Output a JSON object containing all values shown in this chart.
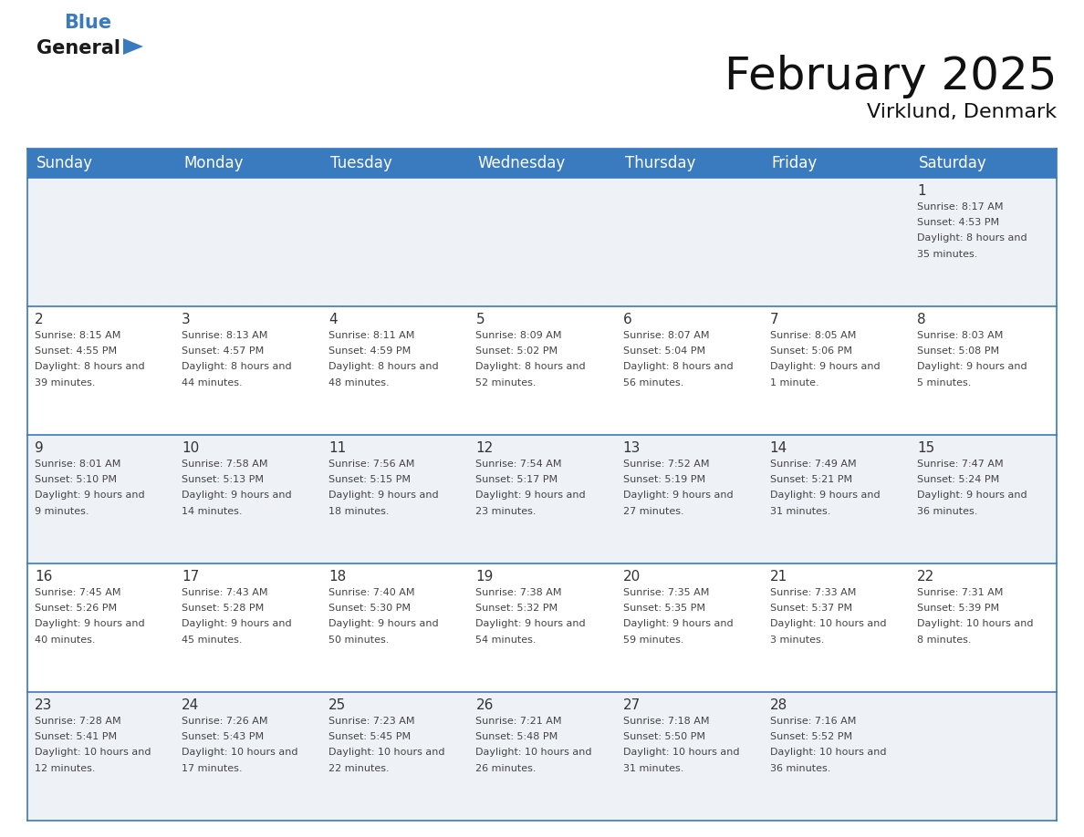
{
  "title": "February 2025",
  "subtitle": "Virklund, Denmark",
  "header_color": "#3a7abf",
  "header_text_color": "#ffffff",
  "day_names": [
    "Sunday",
    "Monday",
    "Tuesday",
    "Wednesday",
    "Thursday",
    "Friday",
    "Saturday"
  ],
  "cell_bg_even": "#eef2f7",
  "cell_bg_odd": "#ffffff",
  "border_color": "#3a7abf",
  "day_num_color": "#333333",
  "text_color": "#444444",
  "title_fontsize": 36,
  "subtitle_fontsize": 16,
  "header_fontsize": 12,
  "day_num_fontsize": 11,
  "info_fontsize": 8.0,
  "days": [
    {
      "date": 1,
      "col": 6,
      "row": 0,
      "sunrise": "8:17 AM",
      "sunset": "4:53 PM",
      "daylight": "8 hours and 35 minutes"
    },
    {
      "date": 2,
      "col": 0,
      "row": 1,
      "sunrise": "8:15 AM",
      "sunset": "4:55 PM",
      "daylight": "8 hours and 39 minutes"
    },
    {
      "date": 3,
      "col": 1,
      "row": 1,
      "sunrise": "8:13 AM",
      "sunset": "4:57 PM",
      "daylight": "8 hours and 44 minutes"
    },
    {
      "date": 4,
      "col": 2,
      "row": 1,
      "sunrise": "8:11 AM",
      "sunset": "4:59 PM",
      "daylight": "8 hours and 48 minutes"
    },
    {
      "date": 5,
      "col": 3,
      "row": 1,
      "sunrise": "8:09 AM",
      "sunset": "5:02 PM",
      "daylight": "8 hours and 52 minutes"
    },
    {
      "date": 6,
      "col": 4,
      "row": 1,
      "sunrise": "8:07 AM",
      "sunset": "5:04 PM",
      "daylight": "8 hours and 56 minutes"
    },
    {
      "date": 7,
      "col": 5,
      "row": 1,
      "sunrise": "8:05 AM",
      "sunset": "5:06 PM",
      "daylight": "9 hours and 1 minute"
    },
    {
      "date": 8,
      "col": 6,
      "row": 1,
      "sunrise": "8:03 AM",
      "sunset": "5:08 PM",
      "daylight": "9 hours and 5 minutes"
    },
    {
      "date": 9,
      "col": 0,
      "row": 2,
      "sunrise": "8:01 AM",
      "sunset": "5:10 PM",
      "daylight": "9 hours and 9 minutes"
    },
    {
      "date": 10,
      "col": 1,
      "row": 2,
      "sunrise": "7:58 AM",
      "sunset": "5:13 PM",
      "daylight": "9 hours and 14 minutes"
    },
    {
      "date": 11,
      "col": 2,
      "row": 2,
      "sunrise": "7:56 AM",
      "sunset": "5:15 PM",
      "daylight": "9 hours and 18 minutes"
    },
    {
      "date": 12,
      "col": 3,
      "row": 2,
      "sunrise": "7:54 AM",
      "sunset": "5:17 PM",
      "daylight": "9 hours and 23 minutes"
    },
    {
      "date": 13,
      "col": 4,
      "row": 2,
      "sunrise": "7:52 AM",
      "sunset": "5:19 PM",
      "daylight": "9 hours and 27 minutes"
    },
    {
      "date": 14,
      "col": 5,
      "row": 2,
      "sunrise": "7:49 AM",
      "sunset": "5:21 PM",
      "daylight": "9 hours and 31 minutes"
    },
    {
      "date": 15,
      "col": 6,
      "row": 2,
      "sunrise": "7:47 AM",
      "sunset": "5:24 PM",
      "daylight": "9 hours and 36 minutes"
    },
    {
      "date": 16,
      "col": 0,
      "row": 3,
      "sunrise": "7:45 AM",
      "sunset": "5:26 PM",
      "daylight": "9 hours and 40 minutes"
    },
    {
      "date": 17,
      "col": 1,
      "row": 3,
      "sunrise": "7:43 AM",
      "sunset": "5:28 PM",
      "daylight": "9 hours and 45 minutes"
    },
    {
      "date": 18,
      "col": 2,
      "row": 3,
      "sunrise": "7:40 AM",
      "sunset": "5:30 PM",
      "daylight": "9 hours and 50 minutes"
    },
    {
      "date": 19,
      "col": 3,
      "row": 3,
      "sunrise": "7:38 AM",
      "sunset": "5:32 PM",
      "daylight": "9 hours and 54 minutes"
    },
    {
      "date": 20,
      "col": 4,
      "row": 3,
      "sunrise": "7:35 AM",
      "sunset": "5:35 PM",
      "daylight": "9 hours and 59 minutes"
    },
    {
      "date": 21,
      "col": 5,
      "row": 3,
      "sunrise": "7:33 AM",
      "sunset": "5:37 PM",
      "daylight": "10 hours and 3 minutes"
    },
    {
      "date": 22,
      "col": 6,
      "row": 3,
      "sunrise": "7:31 AM",
      "sunset": "5:39 PM",
      "daylight": "10 hours and 8 minutes"
    },
    {
      "date": 23,
      "col": 0,
      "row": 4,
      "sunrise": "7:28 AM",
      "sunset": "5:41 PM",
      "daylight": "10 hours and 12 minutes"
    },
    {
      "date": 24,
      "col": 1,
      "row": 4,
      "sunrise": "7:26 AM",
      "sunset": "5:43 PM",
      "daylight": "10 hours and 17 minutes"
    },
    {
      "date": 25,
      "col": 2,
      "row": 4,
      "sunrise": "7:23 AM",
      "sunset": "5:45 PM",
      "daylight": "10 hours and 22 minutes"
    },
    {
      "date": 26,
      "col": 3,
      "row": 4,
      "sunrise": "7:21 AM",
      "sunset": "5:48 PM",
      "daylight": "10 hours and 26 minutes"
    },
    {
      "date": 27,
      "col": 4,
      "row": 4,
      "sunrise": "7:18 AM",
      "sunset": "5:50 PM",
      "daylight": "10 hours and 31 minutes"
    },
    {
      "date": 28,
      "col": 5,
      "row": 4,
      "sunrise": "7:16 AM",
      "sunset": "5:52 PM",
      "daylight": "10 hours and 36 minutes"
    }
  ]
}
